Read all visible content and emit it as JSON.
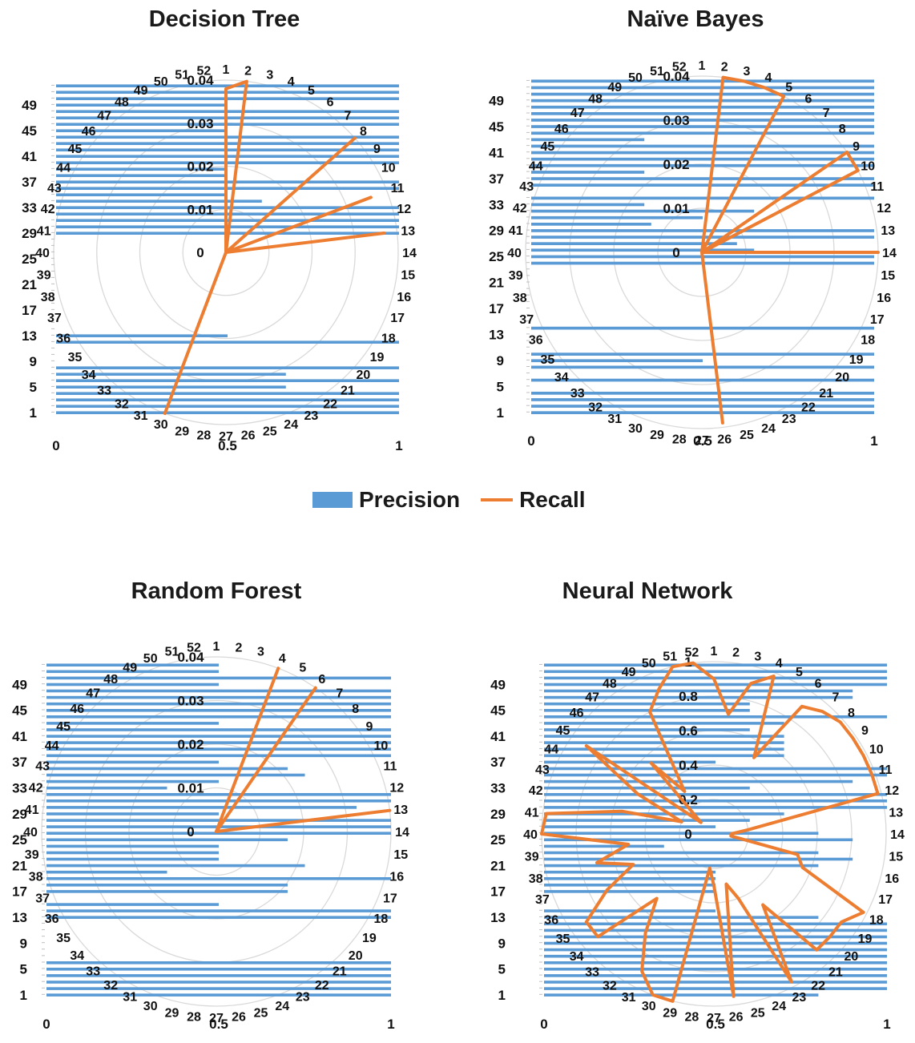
{
  "legend": {
    "precision": "Precision",
    "recall": "Recall"
  },
  "colors": {
    "precision": "#5b9bd5",
    "recall": "#ed7d31",
    "grid": "#d9d9d9"
  },
  "chart_data": [
    {
      "type": "bar+radar",
      "title": "Decision Tree",
      "bar_axis_ticks": [
        "0",
        "0.5",
        "1"
      ],
      "bar_category_ticks": [
        "1",
        "5",
        "9",
        "13",
        "17",
        "21",
        "25",
        "29",
        "33",
        "37",
        "41",
        "45",
        "49"
      ],
      "radar_ticks": [
        "0",
        "0.01",
        "0.02",
        "0.03",
        "0.04"
      ],
      "radar_max": 0.04,
      "precision": [
        1,
        1,
        1,
        1,
        0.67,
        1,
        0.67,
        1,
        0,
        0,
        0,
        1,
        0.5,
        0,
        0,
        0,
        0,
        0,
        0,
        0,
        0,
        0,
        0,
        0,
        0,
        0,
        0,
        0,
        1,
        1,
        1,
        1,
        1,
        0.6,
        0.5,
        1,
        1,
        0.5,
        0.5,
        1,
        1,
        1,
        1,
        1,
        0.5,
        1,
        1,
        1,
        0.5,
        1,
        1,
        1
      ],
      "recall": [
        0.038,
        0.04,
        0,
        0,
        0,
        0,
        0,
        0.04,
        0,
        0,
        0.036,
        0,
        0.037,
        0,
        0,
        0,
        0,
        0,
        0,
        0,
        0,
        0,
        0,
        0,
        0,
        0,
        0,
        0,
        0,
        0.04,
        0,
        0,
        0,
        0,
        0,
        0,
        0,
        0,
        0,
        0,
        0,
        0,
        0,
        0,
        0,
        0,
        0,
        0,
        0,
        0,
        0,
        0
      ]
    },
    {
      "type": "bar+radar",
      "title": "Naïve Bayes",
      "bar_axis_ticks": [
        "0",
        "0.5",
        "1"
      ],
      "bar_category_ticks": [
        "1",
        "5",
        "9",
        "13",
        "17",
        "21",
        "25",
        "29",
        "33",
        "37",
        "41",
        "45",
        "49"
      ],
      "radar_ticks": [
        "0",
        "0.01",
        "0.02",
        "0.03",
        "0.04"
      ],
      "radar_max": 0.04,
      "precision": [
        1,
        1,
        1,
        1,
        0,
        1,
        0,
        1,
        0.5,
        1,
        0,
        0,
        0,
        1,
        0,
        0,
        0,
        0,
        0,
        0,
        0,
        0,
        0,
        1,
        1,
        0.65,
        0.6,
        1,
        1,
        0.35,
        0.5,
        0.65,
        0.33,
        1,
        0,
        1,
        1,
        0.33,
        1,
        1,
        1,
        1,
        0.33,
        1,
        1,
        1,
        1,
        1,
        1,
        1,
        1,
        1
      ],
      "recall": [
        0,
        0.04,
        0.04,
        0.04,
        0.04,
        0,
        0,
        0,
        0.04,
        0.04,
        0,
        0,
        0,
        0.04,
        0,
        0,
        0,
        0,
        0,
        0,
        0,
        0,
        0,
        0,
        0,
        0.039,
        0,
        0,
        0,
        0,
        0,
        0,
        0,
        0,
        0,
        0,
        0,
        0,
        0,
        0,
        0,
        0,
        0,
        0,
        0,
        0,
        0,
        0,
        0,
        0,
        0,
        0
      ]
    },
    {
      "type": "bar+radar",
      "title": "Random Forest",
      "bar_axis_ticks": [
        "0",
        "0.5",
        "1"
      ],
      "bar_category_ticks": [
        "1",
        "5",
        "9",
        "13",
        "17",
        "21",
        "25",
        "29",
        "33",
        "37",
        "41",
        "45",
        "49"
      ],
      "radar_ticks": [
        "0",
        "0.01",
        "0.02",
        "0.03",
        "0.04"
      ],
      "radar_max": 0.04,
      "precision": [
        1,
        1,
        1,
        1,
        1,
        1,
        0,
        0,
        0,
        0,
        0,
        0,
        1,
        1,
        0.5,
        0,
        0.7,
        0.7,
        1,
        0.35,
        0.75,
        0.5,
        0.5,
        0.5,
        0.7,
        1,
        1,
        1,
        0.5,
        0.9,
        1,
        1,
        0.35,
        0.5,
        0.75,
        0.7,
        0.5,
        1,
        1,
        1,
        1,
        1,
        0.5,
        1,
        1,
        1,
        1,
        1,
        0.5,
        1,
        0.5,
        0.5
      ],
      "recall": [
        0,
        0,
        0,
        0.04,
        0,
        0.04,
        0,
        0,
        0,
        0,
        0,
        0,
        0.04,
        0,
        0,
        0,
        0,
        0,
        0,
        0,
        0,
        0,
        0,
        0,
        0,
        0,
        0,
        0,
        0,
        0,
        0,
        0,
        0,
        0,
        0,
        0,
        0,
        0,
        0,
        0,
        0,
        0,
        0,
        0,
        0,
        0,
        0,
        0,
        0,
        0,
        0,
        0
      ]
    },
    {
      "type": "bar+radar",
      "title": "Neural Network",
      "bar_axis_ticks": [
        "0",
        "0.5",
        "1"
      ],
      "bar_category_ticks": [
        "1",
        "5",
        "9",
        "13",
        "17",
        "21",
        "25",
        "29",
        "33",
        "37",
        "41",
        "45",
        "49"
      ],
      "radar_ticks": [
        "0",
        "0.2",
        "0.4",
        "0.6",
        "0.8",
        "1"
      ],
      "radar_max": 1,
      "precision": [
        0.8,
        1,
        1,
        1,
        1,
        1,
        1,
        1,
        1,
        1,
        1,
        1,
        0.8,
        0.5,
        0,
        0,
        0.5,
        0.5,
        0.5,
        0.5,
        0.8,
        0.9,
        0.8,
        0.35,
        0.9,
        0.8,
        0.5,
        0.6,
        0.7,
        1,
        1,
        1,
        0.6,
        0.9,
        1,
        1,
        0.5,
        0.7,
        0.7,
        0.7,
        0.7,
        0.6,
        0.7,
        1,
        0.6,
        0.6,
        0.9,
        0.9,
        1,
        1,
        1,
        1
      ],
      "recall": [
        0.9,
        0.7,
        0.9,
        0.98,
        0.5,
        0.9,
        0.95,
        0.98,
        0.98,
        0.98,
        0.98,
        0.98,
        0.2,
        0.1,
        0.1,
        0.5,
        0.55,
        0.98,
        0.9,
        0.9,
        0.9,
        0.5,
        0.97,
        0.4,
        0.3,
        0.95,
        0.3,
        0.2,
        1,
        1,
        0.9,
        0.7,
        0.5,
        0.9,
        0.9,
        0.7,
        0.5,
        0.7,
        0.5,
        1,
        0.98,
        0.55,
        0.2,
        0.5,
        0.9,
        0.1,
        0.55,
        0.3,
        0.8,
        0.9,
        1,
        1
      ]
    }
  ]
}
